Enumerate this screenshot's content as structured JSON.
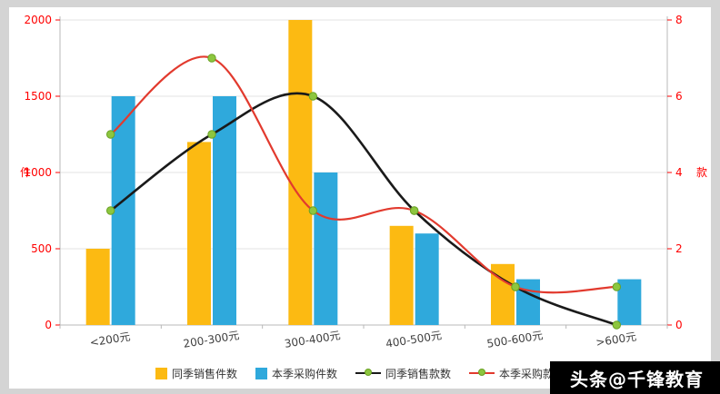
{
  "watermark": {
    "text": "头条@千锋教育"
  },
  "chart_data": {
    "type": "combo-bar-line",
    "categories": [
      "<200元",
      "200-300元",
      "300-400元",
      "400-500元",
      "500-600元",
      ">600元"
    ],
    "bar_series": [
      {
        "name": "同季销售件数",
        "color": "#FCBA12",
        "axis": "left",
        "values": [
          500,
          1200,
          2000,
          650,
          400,
          0
        ]
      },
      {
        "name": "本季采购件数",
        "color": "#2FA9DC",
        "axis": "left",
        "values": [
          1500,
          1500,
          1000,
          600,
          300,
          300
        ]
      }
    ],
    "line_series": [
      {
        "name": "同季销售款数",
        "color": "#1A1A1A",
        "marker": "#8DC63F",
        "axis": "right",
        "values": [
          3,
          5,
          6,
          3,
          1,
          0
        ]
      },
      {
        "name": "本季采购款数",
        "color": "#E23A2E",
        "marker": "#8DC63F",
        "axis": "right",
        "values": [
          5,
          7,
          3,
          3,
          1,
          1
        ]
      }
    ],
    "left_axis": {
      "label": "件",
      "ticks": [
        0,
        500,
        1000,
        1500,
        2000
      ],
      "max": 2000,
      "tick_color": "#FF0000"
    },
    "right_axis": {
      "label": "款",
      "ticks": [
        0,
        2,
        4,
        6,
        8
      ],
      "max": 8,
      "tick_color": "#FF0000"
    },
    "grid": true,
    "legend_position": "bottom"
  }
}
